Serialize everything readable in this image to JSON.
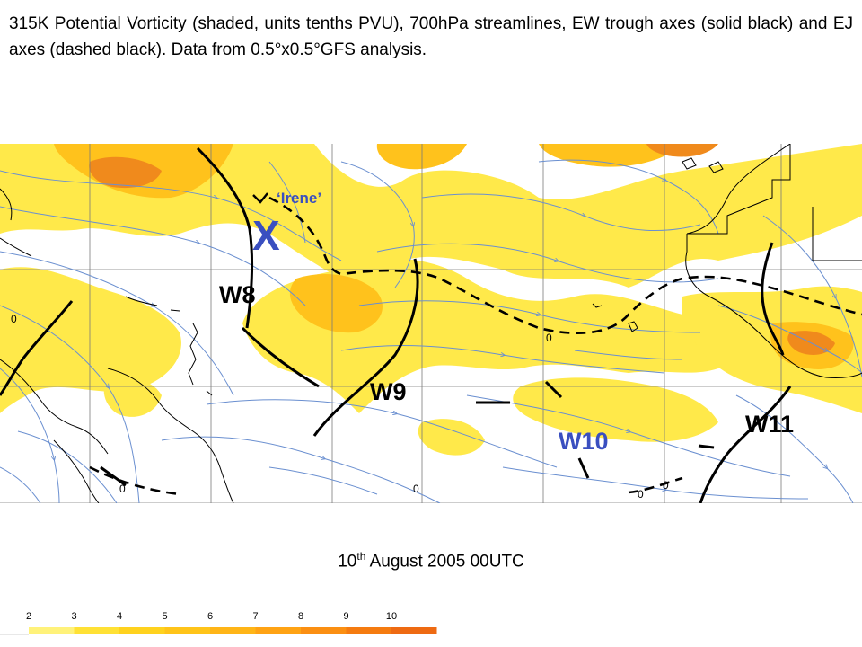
{
  "caption": "315K Potential Vorticity (shaded, units tenths PVU), 700hPa streamlines, EW trough axes (solid black) and EJ axes (dashed black). Data from 0.5°x0.5°GFS analysis.",
  "storm": {
    "mark": "X",
    "name": "‘Irene’",
    "mark_color": "#3a4fc0"
  },
  "waves": [
    {
      "label": "W8",
      "color": "#000000"
    },
    {
      "label": "W9",
      "color": "#000000"
    },
    {
      "label": "W10",
      "color": "#3a4fc0"
    },
    {
      "label": "W11",
      "color": "#000000"
    }
  ],
  "contour_zero_label": "0",
  "date": {
    "day": "10",
    "suffix": "th",
    "rest": " August 2005 00UTC"
  },
  "scale": {
    "values": [
      "2",
      "3",
      "4",
      "5",
      "6",
      "7",
      "8",
      "9",
      "10"
    ],
    "colors": [
      "#fff27a",
      "#ffe135",
      "#ffd21e",
      "#ffc419",
      "#ffb517",
      "#ffa314",
      "#fb8f12",
      "#f57b10",
      "#ee6a12"
    ]
  },
  "map_colors": {
    "pv_low": "#ffe94a",
    "pv_mid": "#ffc21c",
    "pv_high": "#f08a1c",
    "streamline": "#6a8fd0",
    "land": "#000000",
    "grid": "#7a7a7a"
  }
}
